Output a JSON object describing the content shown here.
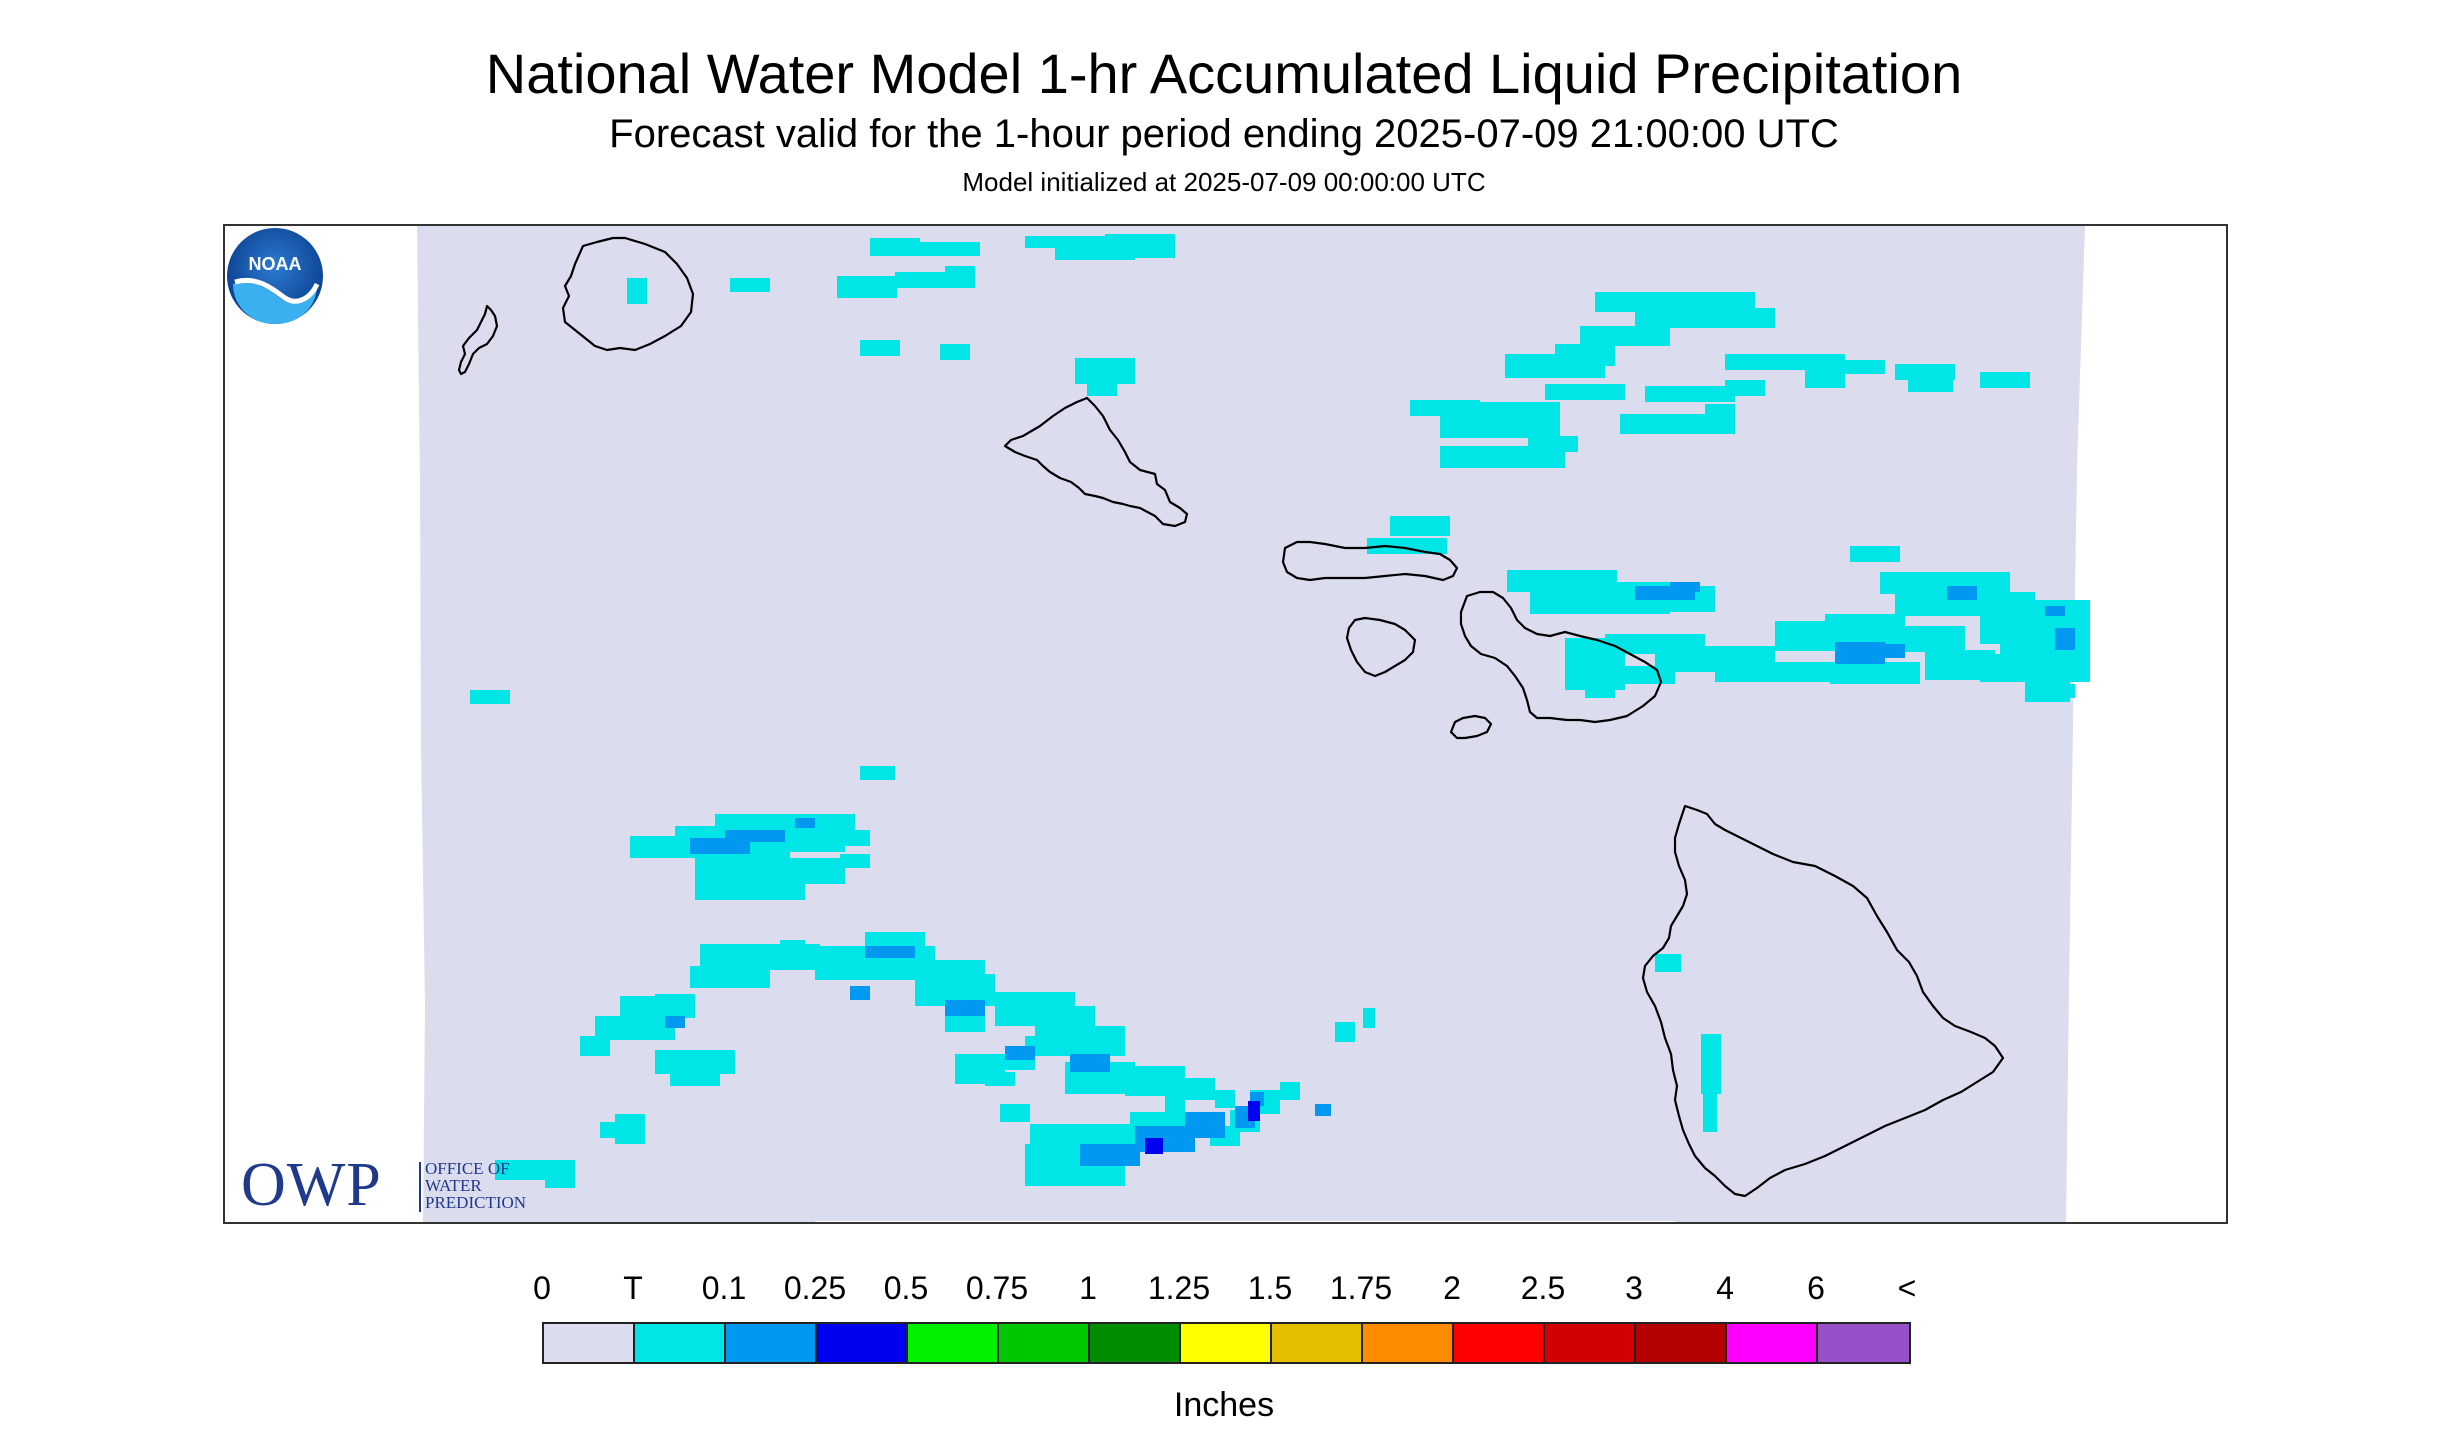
{
  "header": {
    "title": "National Water Model 1-hr Accumulated Liquid Precipitation",
    "subtitle": "Forecast valid for the 1-hour period ending 2025-07-09 21:00:00 UTC",
    "init": "Model initialized at 2025-07-09 00:00:00 UTC"
  },
  "map": {
    "domain_color": "#dcdcef",
    "coast_color": "#000000",
    "islands": [
      "Kauai",
      "Niihau",
      "Oahu",
      "Molokai",
      "Lanai",
      "Maui",
      "Kahoolawe",
      "Hawaii"
    ]
  },
  "logos": {
    "owp_big": "OWP",
    "owp_small_1": "OFFICE OF",
    "owp_small_2": "WATER",
    "owp_small_3": "PREDICTION",
    "noaa": "NOAA"
  },
  "legend": {
    "labels": [
      "0",
      "T",
      "0.1",
      "0.25",
      "0.5",
      "0.75",
      "1",
      "1.25",
      "1.5",
      "1.75",
      "2",
      "2.5",
      "3",
      "4",
      "6",
      "<"
    ],
    "colors": [
      "#dcdcef",
      "#00e6e6",
      "#0098f0",
      "#0000f0",
      "#00f000",
      "#00c800",
      "#008c00",
      "#ffff00",
      "#e6be00",
      "#ff8c00",
      "#ff0000",
      "#d20000",
      "#b40000",
      "#ff00ff",
      "#9650c8"
    ],
    "units": "Inches"
  }
}
